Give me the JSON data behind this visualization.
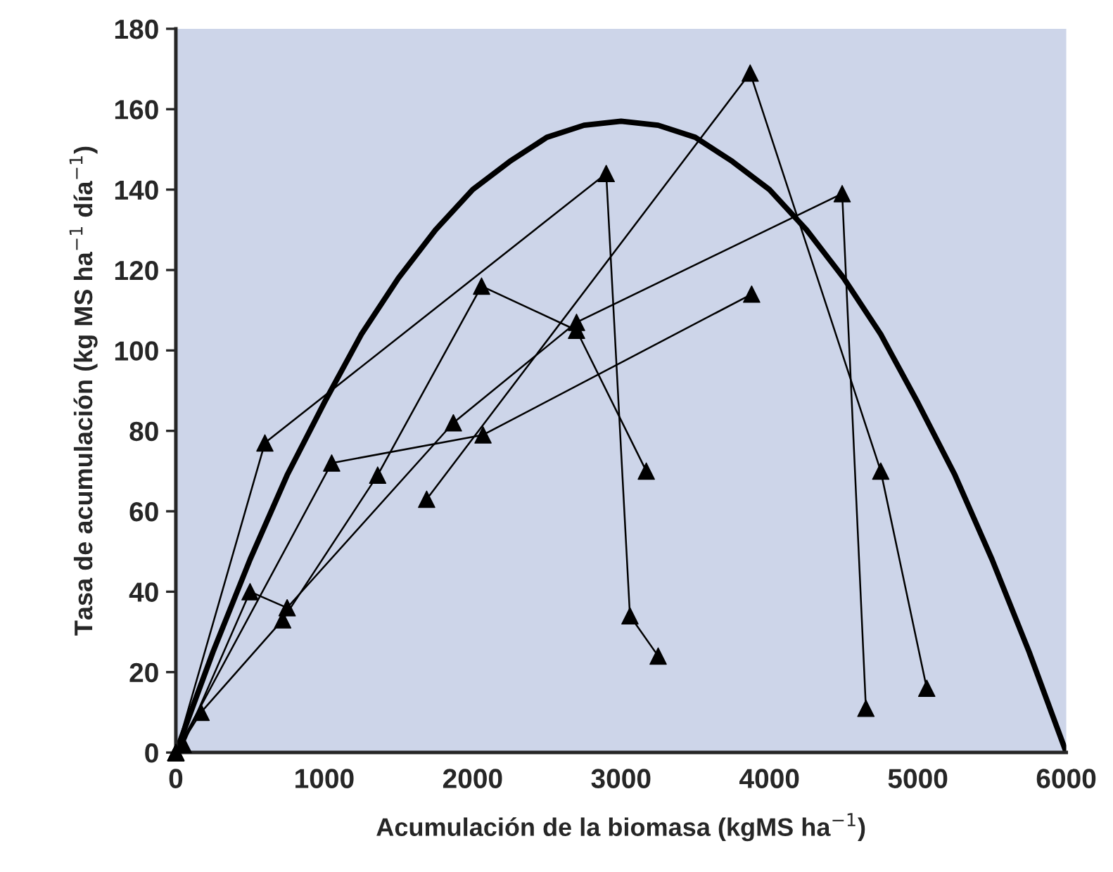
{
  "chart_data": {
    "type": "line",
    "xlabel": "Acumulación de la biomasa (kgMS ha$^{−1}$)",
    "ylabel": "Tasa de acumulación (kg MS ha$^{−1}$ día$^{−1}$)",
    "xlim": [
      0,
      6000
    ],
    "ylim": [
      0,
      180
    ],
    "xticks": [
      0,
      1000,
      2000,
      3000,
      4000,
      5000,
      6000
    ],
    "yticks": [
      0,
      20,
      40,
      60,
      80,
      100,
      120,
      140,
      160,
      180
    ],
    "grid": false,
    "legend": false,
    "line_style": "solid",
    "series": [
      {
        "color": "#000000",
        "marker": "triangle",
        "x": [
          0,
          600,
          2900,
          3060,
          3250
        ],
        "values": [
          0,
          77,
          144,
          34,
          24
        ]
      },
      {
        "color": "#000000",
        "marker": "triangle",
        "x": [
          0,
          50,
          500,
          750,
          1870,
          2700,
          4490,
          4650
        ],
        "values": [
          0,
          2,
          40,
          36,
          82,
          107,
          139,
          11
        ]
      },
      {
        "color": "#000000",
        "marker": "triangle",
        "x": [
          0,
          1050,
          2070,
          3880
        ],
        "values": [
          0,
          72,
          79,
          114
        ]
      },
      {
        "color": "#000000",
        "marker": "triangle",
        "x": [
          0,
          170,
          720,
          1360,
          2060,
          2700,
          3170
        ],
        "values": [
          0,
          10,
          33,
          69,
          116,
          105,
          70
        ]
      },
      {
        "color": "#000000",
        "marker": "triangle",
        "x": [
          1690,
          3870,
          4750,
          5060
        ],
        "values": [
          63,
          169,
          70,
          16
        ]
      },
      {
        "color": "#000000",
        "marker": "none",
        "x": [
          0,
          250,
          500,
          750,
          1000,
          1250,
          1500,
          1750,
          2000,
          2250,
          2500,
          2750,
          3000,
          3250,
          3500,
          3750,
          4000,
          4250,
          4500,
          4750,
          5000,
          5250,
          5500,
          5750,
          6000
        ],
        "values": [
          0,
          25,
          48,
          69,
          87,
          104,
          118,
          130,
          140,
          147,
          153,
          156,
          157,
          156,
          153,
          147,
          140,
          130,
          118,
          104,
          87,
          69,
          48,
          25,
          0
        ]
      }
    ]
  }
}
